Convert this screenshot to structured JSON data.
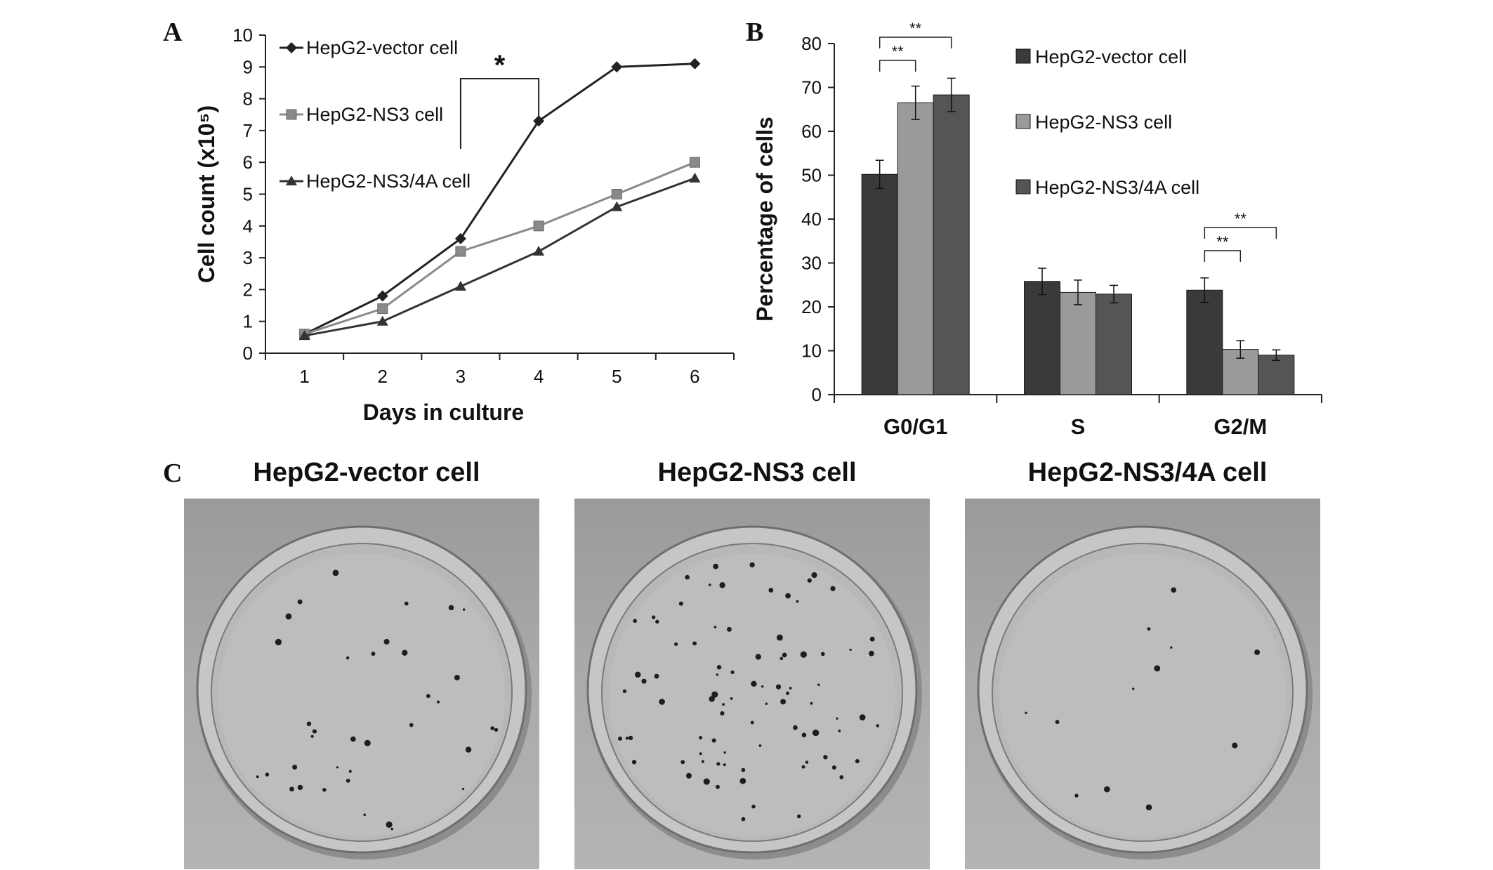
{
  "panel_labels": {
    "a": "A",
    "b": "B",
    "c": "C"
  },
  "chart_data": [
    {
      "type": "line",
      "panel": "A",
      "xlabel": "Days in culture",
      "ylabel": "Cell count (x10⁵)",
      "x": [
        1,
        2,
        3,
        4,
        5,
        6
      ],
      "xticks": [
        "1",
        "2",
        "3",
        "4",
        "5",
        "6"
      ],
      "ylim": [
        0,
        10
      ],
      "yticks": [
        "0",
        "1",
        "2",
        "3",
        "4",
        "5",
        "6",
        "7",
        "8",
        "9",
        "10"
      ],
      "series": [
        {
          "name": "HepG2-vector cell",
          "marker": "diamond",
          "color": "#222222",
          "values": [
            0.6,
            1.8,
            3.6,
            7.3,
            9.0,
            9.1
          ]
        },
        {
          "name": "HepG2-NS3 cell",
          "marker": "square",
          "color": "#8a8a8a",
          "values": [
            0.6,
            1.4,
            3.2,
            4.0,
            5.0,
            6.0
          ]
        },
        {
          "name": "HepG2-NS3/4A cell",
          "marker": "triangle",
          "color": "#333333",
          "values": [
            0.55,
            1.0,
            2.1,
            3.2,
            4.6,
            5.5
          ]
        }
      ],
      "annotations": [
        {
          "label": "*",
          "from_x": 3,
          "to_x": 4
        }
      ],
      "legend_position": "top-left",
      "grid": false
    },
    {
      "type": "bar",
      "panel": "B",
      "ylabel": "Percentage of cells",
      "categories": [
        "G0/G1",
        "S",
        "G2/M"
      ],
      "ylim": [
        0,
        80
      ],
      "yticks": [
        "0",
        "10",
        "20",
        "30",
        "40",
        "50",
        "60",
        "70",
        "80"
      ],
      "series": [
        {
          "name": "HepG2-vector cell",
          "color": "#3a3a3a",
          "values": [
            50.2,
            25.8,
            23.8
          ],
          "errors": [
            3.2,
            3.0,
            2.8
          ]
        },
        {
          "name": "HepG2-NS3 cell",
          "color": "#9a9a9a",
          "values": [
            66.5,
            23.3,
            10.3
          ],
          "errors": [
            3.8,
            2.8,
            2.0
          ]
        },
        {
          "name": "HepG2-NS3/4A cell",
          "color": "#555555",
          "values": [
            68.3,
            22.9,
            9.0
          ],
          "errors": [
            3.8,
            2.0,
            1.2
          ]
        }
      ],
      "significance": [
        {
          "category": "G0/G1",
          "between": [
            0,
            1
          ],
          "label": "**"
        },
        {
          "category": "G0/G1",
          "between": [
            0,
            2
          ],
          "label": "**"
        },
        {
          "category": "G2/M",
          "between": [
            0,
            1
          ],
          "label": "**"
        },
        {
          "category": "G2/M",
          "between": [
            0,
            2
          ],
          "label": "**"
        }
      ],
      "legend_position": "top-right",
      "grid": false
    }
  ],
  "colony_panel": {
    "titles": [
      "HepG2-vector cell",
      "HepG2-NS3 cell",
      "HepG2-NS3/4A cell"
    ],
    "colony_density": [
      "moderate",
      "high",
      "low"
    ]
  }
}
